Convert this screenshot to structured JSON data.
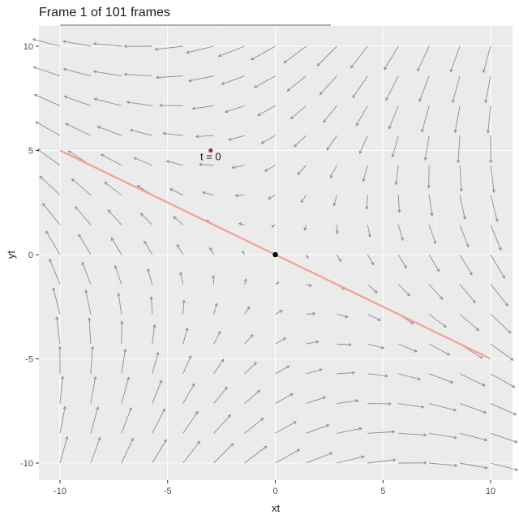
{
  "chart_data": {
    "type": "vector-field",
    "title": "Frame 1 of 101 frames",
    "xlabel": "xt",
    "ylabel": "yt",
    "xlim": [
      -10,
      10
    ],
    "ylim": [
      -10,
      10
    ],
    "x_ticks": [
      -10,
      -5,
      0,
      5,
      10
    ],
    "y_ticks": [
      -10,
      -5,
      0,
      5,
      10
    ],
    "x_tick_labels": [
      "-10",
      "-5",
      "0",
      "5",
      "10"
    ],
    "y_tick_labels": [
      "-10",
      "-5",
      "0",
      "5",
      "10"
    ],
    "grid": true,
    "field": {
      "grid_min": -10,
      "grid_max": 10,
      "grid_count": 15,
      "matrix": [
        [
          0.5,
          -0.866
        ],
        [
          -0.866,
          -0.5
        ]
      ],
      "scale": 0.13,
      "max_length": 1.3,
      "arrow_color": "#8c8c8c"
    },
    "line": {
      "x": [
        -10,
        10
      ],
      "y": [
        5,
        -5
      ],
      "color": "#f4a090"
    },
    "origin_point": {
      "x": 0,
      "y": 0,
      "color": "#000000"
    },
    "moving_point": {
      "x": -3,
      "y": 5,
      "color": "#8b3a3a"
    },
    "annotation": {
      "text": "t = 0",
      "x": -3,
      "y": 5
    },
    "progress": {
      "frame": 1,
      "total": 101,
      "fraction": 0.01,
      "color": "#7f7f7f"
    },
    "colors": {
      "panel": "#ebebeb",
      "grid_major": "#ffffff",
      "grid_minor": "#f2f2f2"
    }
  }
}
